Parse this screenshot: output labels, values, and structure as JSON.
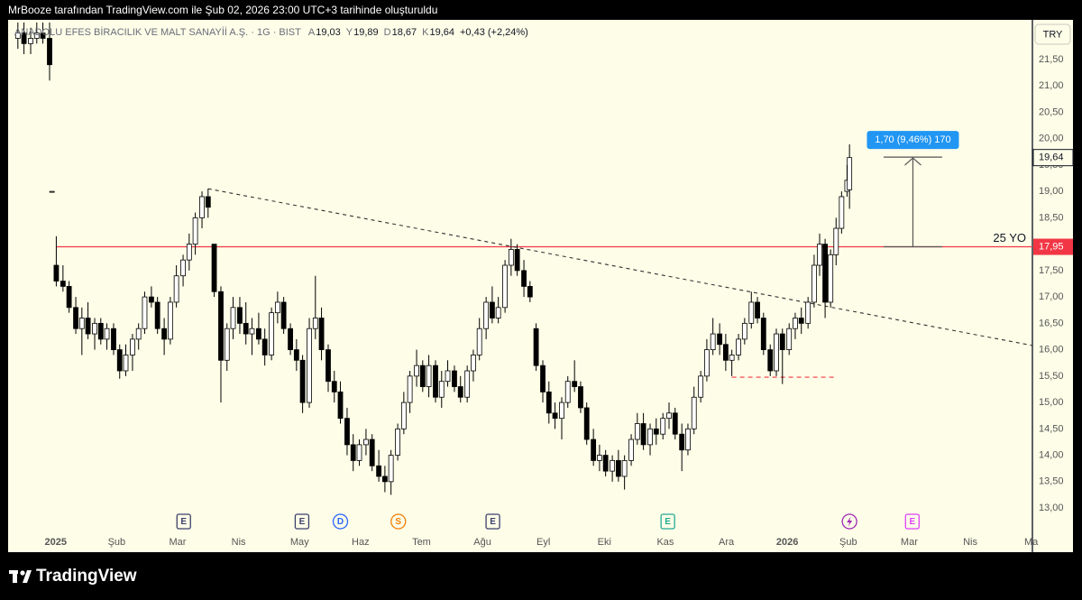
{
  "caption": "MrBooze tarafından TradingView.com ile Şub 02, 2026 23:00 UTC+3 tarihinde oluşturuldu",
  "brand": "TradingView",
  "chart_data": {
    "type": "candlestick",
    "symbol": "ANADOLU EFES BİRACILIK VE MALT SANAYİİ A.Ş. · 1G · BIST",
    "ohlc": [
      {
        "key": "A",
        "value": "19,03"
      },
      {
        "key": "Y",
        "value": "19,89"
      },
      {
        "key": "D",
        "value": "18,67"
      },
      {
        "key": "K",
        "value": "19,64"
      }
    ],
    "change": "+0,43 (+2,24%)",
    "currency": "TRY",
    "xlim": [
      -0.78,
      16.02
    ],
    "xticks": [
      {
        "value": 0,
        "label": "2025"
      },
      {
        "value": 1,
        "label": "Şub"
      },
      {
        "value": 2,
        "label": "Mar"
      },
      {
        "value": 3,
        "label": "Nis"
      },
      {
        "value": 4,
        "label": "May"
      },
      {
        "value": 5,
        "label": "Haz"
      },
      {
        "value": 6,
        "label": "Tem"
      },
      {
        "value": 7,
        "label": "Ağu"
      },
      {
        "value": 8,
        "label": "Eyl"
      },
      {
        "value": 9,
        "label": "Eki"
      },
      {
        "value": 10,
        "label": "Kas"
      },
      {
        "value": 11,
        "label": "Ara"
      },
      {
        "value": 12,
        "label": "2026"
      },
      {
        "value": 13,
        "label": "Şub"
      },
      {
        "value": 14,
        "label": "Mar"
      },
      {
        "value": 15,
        "label": "Nis"
      },
      {
        "value": 16,
        "label": "Ma"
      }
    ],
    "ylim": [
      12.54,
      22.25
    ],
    "yticks": [
      {
        "value": 13,
        "label": "13,00"
      },
      {
        "value": 13.5,
        "label": "13,50"
      },
      {
        "value": 14,
        "label": "14,00"
      },
      {
        "value": 14.5,
        "label": "14,50"
      },
      {
        "value": 15,
        "label": "15,00"
      },
      {
        "value": 15.5,
        "label": "15,50"
      },
      {
        "value": 16,
        "label": "16,00"
      },
      {
        "value": 16.5,
        "label": "16,50"
      },
      {
        "value": 17,
        "label": "17,00"
      },
      {
        "value": 17.5,
        "label": "17,50"
      },
      {
        "value": 18,
        "label": "18,00"
      },
      {
        "value": 18.5,
        "label": "18,50"
      },
      {
        "value": 19,
        "label": "19,00"
      },
      {
        "value": 19.5,
        "label": "19,50"
      },
      {
        "value": 20,
        "label": "20,00"
      },
      {
        "value": 20.5,
        "label": "20,50"
      },
      {
        "value": 21,
        "label": "21,00"
      },
      {
        "value": 21.5,
        "label": "21,50"
      }
    ],
    "x": [
      -0.62,
      -0.52,
      -0.41,
      -0.31,
      -0.21,
      -0.1,
      -0.06,
      0.01,
      0.12,
      0.22,
      0.33,
      0.43,
      0.53,
      0.64,
      0.74,
      0.84,
      0.95,
      1.05,
      1.15,
      1.26,
      1.36,
      1.46,
      1.57,
      1.67,
      1.78,
      1.88,
      1.98,
      2.09,
      2.19,
      2.29,
      2.4,
      2.5,
      2.6,
      2.71,
      2.81,
      2.91,
      3.02,
      3.12,
      3.22,
      3.33,
      3.43,
      3.54,
      3.64,
      3.74,
      3.85,
      3.95,
      4.05,
      4.16,
      4.26,
      4.36,
      4.47,
      4.57,
      4.67,
      4.78,
      4.88,
      4.98,
      5.09,
      5.19,
      5.3,
      5.4,
      5.5,
      5.61,
      5.71,
      5.81,
      5.92,
      6.02,
      6.12,
      6.23,
      6.33,
      6.43,
      6.54,
      6.64,
      6.75,
      6.85,
      6.95,
      7.06,
      7.16,
      7.26,
      7.37,
      7.47,
      7.57,
      7.68,
      7.78,
      7.88,
      7.99,
      8.09,
      8.19,
      8.3,
      8.4,
      8.51,
      8.61,
      8.71,
      8.82,
      8.92,
      9.02,
      9.13,
      9.23,
      9.33,
      9.44,
      9.54,
      9.64,
      9.75,
      9.85,
      9.96,
      10.06,
      10.16,
      10.27,
      10.37,
      10.47,
      10.58,
      10.68,
      10.78,
      10.89,
      10.99,
      11.09,
      11.2,
      11.3,
      11.41,
      11.51,
      11.61,
      11.72,
      11.82,
      11.92,
      12.03,
      12.13,
      12.23,
      12.34,
      12.44,
      12.53,
      12.62,
      12.71,
      12.8,
      12.89,
      12.98,
      13.02
    ],
    "open": [
      21.9,
      22.0,
      21.8,
      21.9,
      22.0,
      21.9,
      19.0,
      17.6,
      17.3,
      17.2,
      16.8,
      16.4,
      16.6,
      16.3,
      16.5,
      16.2,
      16.4,
      16.0,
      15.6,
      15.9,
      16.2,
      16.4,
      17.0,
      16.9,
      16.4,
      16.2,
      16.9,
      17.4,
      17.7,
      18.0,
      18.5,
      18.9,
      18.0,
      17.1,
      15.8,
      16.4,
      16.8,
      16.5,
      16.3,
      16.4,
      16.2,
      15.9,
      16.7,
      16.9,
      16.4,
      16.0,
      15.8,
      15.0,
      16.4,
      16.6,
      16.0,
      15.4,
      15.2,
      14.7,
      14.2,
      13.9,
      14.2,
      14.3,
      13.8,
      13.6,
      13.5,
      14.0,
      14.5,
      15.0,
      15.5,
      15.7,
      15.3,
      15.7,
      15.1,
      15.4,
      15.6,
      15.3,
      15.1,
      15.6,
      15.9,
      16.4,
      16.9,
      16.6,
      16.8,
      17.6,
      17.9,
      17.5,
      17.2,
      16.4,
      15.7,
      15.2,
      14.8,
      14.7,
      15.0,
      15.4,
      15.3,
      14.9,
      14.3,
      13.9,
      14.0,
      13.7,
      13.9,
      13.6,
      13.9,
      14.3,
      14.6,
      14.2,
      14.5,
      14.4,
      14.7,
      14.8,
      14.4,
      14.1,
      14.5,
      15.1,
      15.5,
      16.0,
      16.3,
      16.1,
      15.8,
      15.9,
      16.2,
      16.5,
      16.9,
      16.6,
      16.0,
      15.6,
      16.3,
      16.0,
      16.4,
      16.6,
      16.5,
      16.9,
      17.6,
      18.0,
      16.9,
      17.8,
      18.3,
      19.0,
      19.03
    ],
    "high": [
      22.2,
      22.2,
      22.1,
      22.2,
      22.2,
      22.2,
      19.0,
      18.15,
      17.6,
      17.3,
      17.0,
      16.8,
      16.9,
      16.6,
      16.6,
      16.5,
      16.5,
      16.1,
      16.1,
      16.3,
      16.5,
      17.1,
      17.2,
      17.0,
      16.6,
      17.0,
      17.6,
      17.8,
      18.2,
      18.6,
      19.0,
      19.05,
      18.0,
      17.2,
      16.5,
      17.0,
      17.0,
      16.9,
      16.6,
      16.7,
      16.4,
      16.8,
      17.1,
      17.0,
      16.5,
      16.2,
      15.9,
      16.6,
      17.4,
      16.8,
      16.1,
      15.6,
      15.4,
      14.9,
      14.4,
      14.3,
      14.5,
      14.4,
      14.1,
      13.8,
      14.1,
      14.6,
      15.2,
      15.6,
      16.0,
      15.8,
      15.9,
      15.8,
      15.6,
      15.8,
      15.7,
      15.5,
      15.7,
      16.0,
      16.6,
      17.0,
      17.2,
      17.0,
      17.7,
      18.1,
      18.0,
      17.7,
      17.3,
      16.5,
      15.8,
      15.4,
      15.0,
      15.1,
      15.5,
      15.8,
      15.4,
      15.0,
      14.5,
      14.2,
      14.1,
      14.0,
      14.1,
      14.0,
      14.4,
      14.8,
      14.8,
      14.6,
      14.7,
      14.8,
      15.0,
      14.9,
      14.6,
      14.6,
      15.3,
      15.6,
      16.2,
      16.6,
      16.5,
      16.3,
      16.0,
      16.3,
      16.6,
      17.1,
      17.0,
      16.7,
      16.1,
      16.4,
      16.4,
      16.5,
      16.7,
      16.8,
      17.0,
      17.8,
      18.2,
      18.1,
      17.9,
      18.5,
      19.0,
      19.5,
      19.89
    ],
    "low": [
      21.7,
      21.6,
      21.6,
      21.8,
      21.8,
      21.1,
      19.0,
      17.2,
      17.1,
      16.7,
      16.3,
      15.9,
      16.2,
      16.0,
      16.1,
      16.0,
      15.9,
      15.45,
      15.5,
      15.6,
      16.0,
      16.3,
      16.8,
      16.3,
      15.9,
      16.1,
      16.8,
      17.2,
      17.5,
      17.8,
      18.3,
      18.5,
      17.0,
      15.0,
      15.6,
      16.2,
      16.3,
      16.1,
      15.9,
      16.1,
      15.7,
      15.8,
      16.5,
      16.3,
      15.9,
      15.6,
      14.8,
      14.9,
      16.2,
      15.8,
      15.2,
      15.0,
      14.6,
      14.0,
      13.7,
      13.8,
      14.0,
      13.7,
      13.5,
      13.3,
      13.25,
      13.9,
      14.4,
      14.8,
      15.3,
      15.2,
      15.1,
      15.0,
      14.9,
      15.3,
      15.2,
      15.0,
      15.0,
      15.4,
      15.8,
      16.2,
      16.5,
      16.5,
      16.7,
      17.4,
      17.4,
      17.0,
      16.9,
      15.6,
      15.0,
      14.6,
      14.5,
      14.3,
      14.9,
      15.2,
      14.8,
      14.2,
      13.8,
      13.7,
      13.6,
      13.5,
      13.5,
      13.35,
      13.8,
      14.2,
      14.1,
      14.0,
      14.2,
      14.3,
      14.5,
      14.3,
      13.7,
      14.0,
      14.4,
      15.0,
      15.4,
      15.9,
      15.9,
      15.6,
      15.5,
      15.8,
      16.1,
      16.4,
      16.5,
      15.9,
      15.5,
      15.5,
      15.35,
      15.9,
      16.2,
      16.3,
      16.4,
      16.8,
      17.4,
      16.6,
      16.8,
      17.6,
      18.2,
      18.9,
      18.67
    ],
    "close": [
      22.0,
      21.8,
      21.9,
      22.0,
      21.9,
      21.4,
      19.0,
      17.3,
      17.2,
      16.8,
      16.4,
      16.6,
      16.3,
      16.5,
      16.2,
      16.4,
      16.0,
      15.6,
      15.9,
      16.2,
      16.4,
      17.0,
      16.9,
      16.4,
      16.2,
      16.9,
      17.4,
      17.7,
      18.0,
      18.5,
      18.9,
      18.7,
      17.1,
      15.8,
      16.4,
      16.8,
      16.5,
      16.3,
      16.4,
      16.2,
      15.9,
      16.7,
      16.9,
      16.4,
      16.0,
      15.8,
      15.0,
      16.4,
      16.6,
      16.0,
      15.4,
      15.2,
      14.7,
      14.2,
      13.9,
      14.2,
      14.3,
      13.8,
      13.6,
      13.5,
      14.0,
      14.5,
      15.0,
      15.5,
      15.7,
      15.3,
      15.7,
      15.1,
      15.4,
      15.6,
      15.3,
      15.1,
      15.6,
      15.9,
      16.4,
      16.9,
      16.6,
      16.8,
      17.6,
      17.9,
      17.5,
      17.2,
      17.0,
      15.7,
      15.2,
      14.8,
      14.7,
      15.0,
      15.4,
      15.3,
      14.9,
      14.3,
      13.9,
      14.0,
      13.7,
      13.9,
      13.6,
      13.9,
      14.3,
      14.6,
      14.2,
      14.5,
      14.4,
      14.7,
      14.8,
      14.4,
      14.1,
      14.5,
      15.1,
      15.5,
      16.0,
      16.3,
      16.1,
      15.8,
      15.9,
      16.2,
      16.5,
      16.9,
      16.6,
      16.0,
      15.6,
      16.3,
      16.0,
      16.4,
      16.6,
      16.5,
      16.9,
      17.6,
      18.0,
      16.9,
      17.8,
      18.3,
      18.9,
      19.21,
      19.64
    ],
    "last_price": {
      "value": 19.64,
      "label": "19,64"
    },
    "hline": {
      "value": 17.95,
      "label": "17,95",
      "text": "25 YO",
      "from": 0.01,
      "color": "#f23645"
    },
    "trendline": {
      "x": [
        2.5,
        16.02
      ],
      "y": [
        19.05,
        16.08
      ]
    },
    "support": {
      "x": [
        11.09,
        12.81
      ],
      "y": 15.48,
      "color": "#f23645"
    },
    "measure": {
      "x": [
        13.58,
        14.54
      ],
      "from": 17.95,
      "to": 19.65,
      "label": "1,70 (9,46%) 170",
      "color": "#2196f3"
    },
    "events": [
      {
        "x": 2.1,
        "label": "E",
        "color": "#3b3f6b",
        "shape": "square"
      },
      {
        "x": 4.04,
        "label": "E",
        "color": "#3b3f6b",
        "shape": "square"
      },
      {
        "x": 4.67,
        "label": "D",
        "color": "#2962ff",
        "shape": "circle"
      },
      {
        "x": 5.62,
        "label": "S",
        "color": "#f57c00",
        "shape": "circle"
      },
      {
        "x": 7.17,
        "label": "E",
        "color": "#3b3f6b",
        "shape": "square"
      },
      {
        "x": 10.04,
        "label": "E",
        "color": "#22ab94",
        "shape": "square"
      },
      {
        "x": 13.02,
        "color": "#9c27b0",
        "shape": "circle"
      },
      {
        "x": 14.05,
        "label": "E",
        "color": "#e040fb",
        "shape": "square"
      }
    ]
  }
}
